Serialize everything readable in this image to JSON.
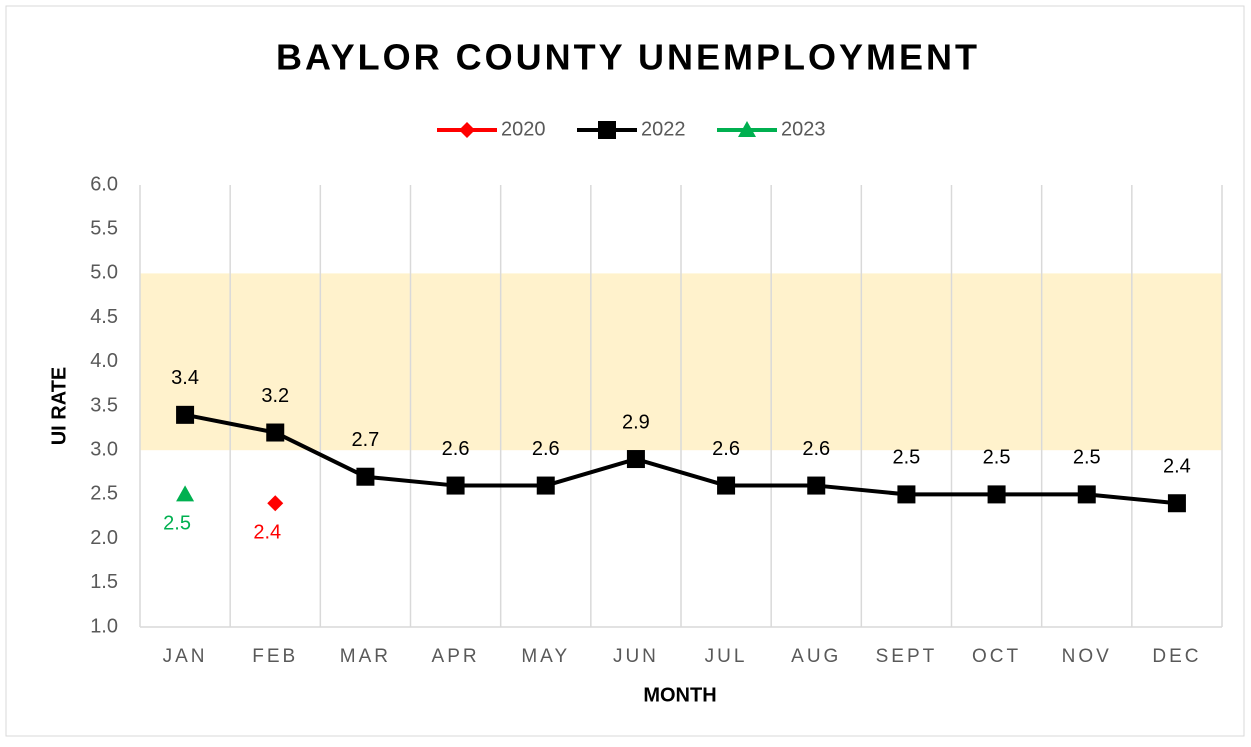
{
  "chart_data": {
    "type": "line",
    "title": "BAYLOR COUNTY UNEMPLOYMENT",
    "x_label": "MONTH",
    "y_label": "UI RATE",
    "categories": [
      "JAN",
      "FEB",
      "MAR",
      "APR",
      "MAY",
      "JUN",
      "JUL",
      "AUG",
      "SEPT",
      "OCT",
      "NOV",
      "DEC"
    ],
    "series": [
      {
        "name": "2020",
        "color": "#ff0000",
        "marker": "diamond",
        "label_position": "below",
        "values": [
          null,
          2.4,
          null,
          null,
          null,
          null,
          null,
          null,
          null,
          null,
          null,
          null
        ]
      },
      {
        "name": "2022",
        "color": "#000000",
        "marker": "square",
        "label_position": "above",
        "values": [
          3.4,
          3.2,
          2.7,
          2.6,
          2.6,
          2.9,
          2.6,
          2.6,
          2.5,
          2.5,
          2.5,
          2.4
        ]
      },
      {
        "name": "2023",
        "color": "#00b050",
        "marker": "triangle",
        "label_position": "below",
        "values": [
          2.5,
          null,
          null,
          null,
          null,
          null,
          null,
          null,
          null,
          null,
          null,
          null
        ]
      }
    ],
    "ylim": [
      1,
      6
    ],
    "yticks": [
      {
        "value": 1,
        "label": "1.0"
      },
      1.5,
      {
        "value": 2,
        "label": "2.0"
      },
      2.5,
      {
        "value": 3,
        "label": "3.0"
      },
      3.5,
      {
        "value": 4,
        "label": "4.0"
      },
      4.5,
      {
        "value": 5,
        "label": "5.0"
      },
      5.5,
      {
        "value": 6,
        "label": "6.0"
      }
    ],
    "highlight_band": {
      "range": [
        3,
        5
      ],
      "color": "#fff2cc"
    },
    "vertical_grid": true,
    "legend": "top"
  }
}
